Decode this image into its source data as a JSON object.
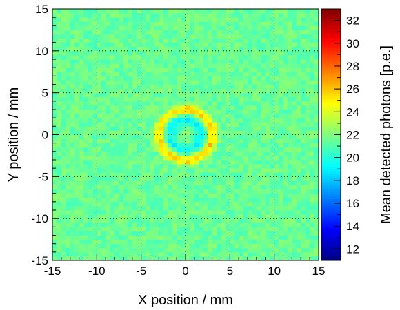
{
  "chart_data": {
    "type": "heatmap",
    "title": "",
    "xlabel": "X position / mm",
    "ylabel": "Y position / mm",
    "zlabel": "Mean detected photons [p.e.]",
    "xlim": [
      -15,
      15
    ],
    "ylim": [
      -15,
      15
    ],
    "zlim": [
      11,
      33
    ],
    "x_ticks": [
      -15,
      -10,
      -5,
      0,
      5,
      10,
      15
    ],
    "y_ticks": [
      -15,
      -10,
      -5,
      0,
      5,
      10,
      15
    ],
    "z_ticks": [
      12,
      14,
      16,
      18,
      20,
      22,
      24,
      26,
      28,
      30,
      32
    ],
    "grid": true,
    "bins": {
      "nx": 60,
      "ny": 60
    },
    "background_level": 21.5,
    "features": [
      {
        "name": "ring",
        "center": [
          0,
          0
        ],
        "radius_mm": 3.0,
        "peak_value": 25.5
      },
      {
        "name": "inner-dip",
        "center": [
          0,
          0
        ],
        "radius_mm": 1.8,
        "min_value": 19.2
      },
      {
        "name": "center-spot",
        "center": [
          0,
          0
        ],
        "radius_mm": 0.6,
        "value": 22.5
      }
    ],
    "colormap": "jet"
  }
}
